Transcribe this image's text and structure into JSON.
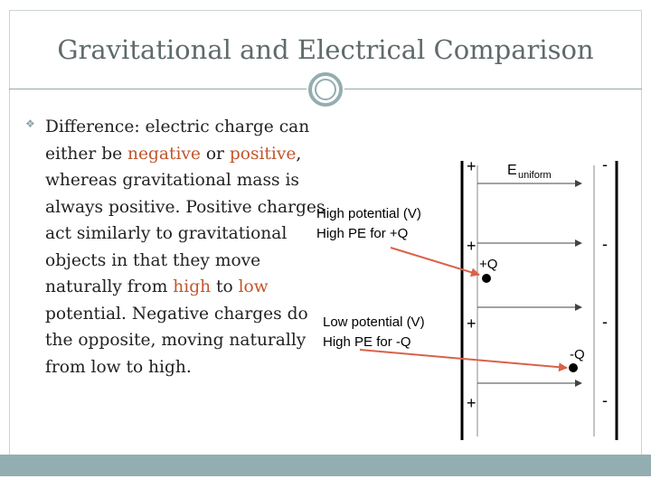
{
  "slide": {
    "title": "Gravitational and Electrical Comparison",
    "body": {
      "intro": "Difference: electric charge can either be ",
      "negative": "negative",
      "mid1": " or ",
      "positive": "positive",
      "mid2": ", whereas gravitational mass is always positive. Positive charges act similarly to gravitational objects in that they move naturally from ",
      "high": "high",
      "mid3": " to ",
      "low": "low",
      "outro": " potential. Negative charges do the opposite, moving naturally from low to high."
    }
  },
  "diagram": {
    "high_potential": "High potential (V)",
    "high_pe": "High PE for +Q",
    "low_potential": "Low potential (V)",
    "low_pe": "High PE for -Q",
    "field_label": "E",
    "field_subscript": "uniform",
    "pos_charge_label": "+Q",
    "neg_charge_label": "-Q",
    "plus_sign": "+",
    "minus_sign": "-"
  },
  "colors": {
    "accent": "#c0562c",
    "arrow": "#d9624a",
    "theme": "#93aeb1"
  }
}
